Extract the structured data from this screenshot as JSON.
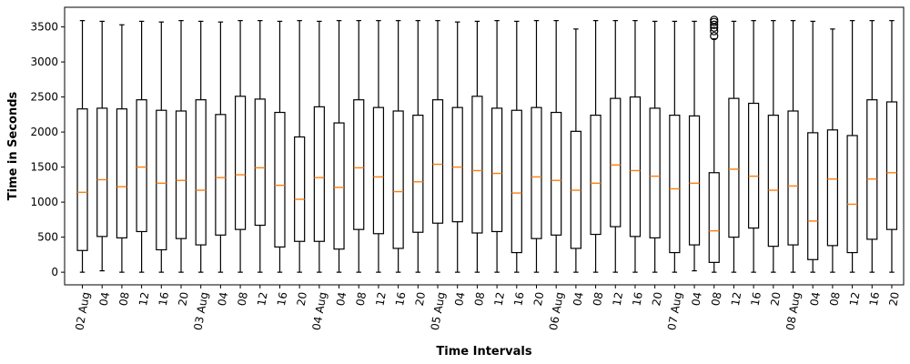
{
  "chart_data": {
    "type": "boxplot",
    "xlabel": "Time Intervals",
    "ylabel": "Time in Seconds",
    "ylim": [
      -180,
      3780
    ],
    "yticks": [
      0,
      500,
      1000,
      1500,
      2000,
      2500,
      3000,
      3500
    ],
    "grid": false,
    "categories": [
      "02 Aug",
      "04",
      "08",
      "12",
      "16",
      "20",
      "03 Aug",
      "04",
      "08",
      "12",
      "16",
      "20",
      "04 Aug",
      "04",
      "08",
      "12",
      "16",
      "20",
      "05 Aug",
      "04",
      "08",
      "12",
      "16",
      "20",
      "06 Aug",
      "04",
      "08",
      "12",
      "16",
      "20",
      "07 Aug",
      "04",
      "08",
      "12",
      "16",
      "20",
      "08 Aug",
      "04",
      "08",
      "12",
      "16",
      "20"
    ],
    "boxes": [
      {
        "min": 0,
        "q1": 310,
        "median": 1140,
        "q3": 2330,
        "max": 3590,
        "outliers": []
      },
      {
        "min": 20,
        "q1": 510,
        "median": 1320,
        "q3": 2340,
        "max": 3580,
        "outliers": []
      },
      {
        "min": 0,
        "q1": 490,
        "median": 1220,
        "q3": 2330,
        "max": 3530,
        "outliers": []
      },
      {
        "min": 0,
        "q1": 580,
        "median": 1500,
        "q3": 2460,
        "max": 3580,
        "outliers": []
      },
      {
        "min": 0,
        "q1": 320,
        "median": 1270,
        "q3": 2310,
        "max": 3570,
        "outliers": []
      },
      {
        "min": 0,
        "q1": 480,
        "median": 1310,
        "q3": 2300,
        "max": 3590,
        "outliers": []
      },
      {
        "min": 0,
        "q1": 390,
        "median": 1170,
        "q3": 2460,
        "max": 3580,
        "outliers": []
      },
      {
        "min": 0,
        "q1": 530,
        "median": 1350,
        "q3": 2250,
        "max": 3570,
        "outliers": []
      },
      {
        "min": 0,
        "q1": 610,
        "median": 1390,
        "q3": 2510,
        "max": 3590,
        "outliers": []
      },
      {
        "min": 0,
        "q1": 670,
        "median": 1490,
        "q3": 2470,
        "max": 3590,
        "outliers": []
      },
      {
        "min": 0,
        "q1": 360,
        "median": 1240,
        "q3": 2280,
        "max": 3580,
        "outliers": []
      },
      {
        "min": 0,
        "q1": 440,
        "median": 1040,
        "q3": 1930,
        "max": 3590,
        "outliers": []
      },
      {
        "min": 0,
        "q1": 440,
        "median": 1350,
        "q3": 2360,
        "max": 3580,
        "outliers": []
      },
      {
        "min": 0,
        "q1": 330,
        "median": 1210,
        "q3": 2130,
        "max": 3590,
        "outliers": []
      },
      {
        "min": 0,
        "q1": 610,
        "median": 1490,
        "q3": 2460,
        "max": 3590,
        "outliers": []
      },
      {
        "min": 0,
        "q1": 550,
        "median": 1360,
        "q3": 2350,
        "max": 3590,
        "outliers": []
      },
      {
        "min": 0,
        "q1": 340,
        "median": 1150,
        "q3": 2300,
        "max": 3590,
        "outliers": []
      },
      {
        "min": 0,
        "q1": 570,
        "median": 1290,
        "q3": 2240,
        "max": 3590,
        "outliers": []
      },
      {
        "min": 0,
        "q1": 700,
        "median": 1540,
        "q3": 2460,
        "max": 3590,
        "outliers": []
      },
      {
        "min": 0,
        "q1": 720,
        "median": 1500,
        "q3": 2350,
        "max": 3570,
        "outliers": []
      },
      {
        "min": 0,
        "q1": 560,
        "median": 1450,
        "q3": 2510,
        "max": 3580,
        "outliers": []
      },
      {
        "min": 0,
        "q1": 580,
        "median": 1410,
        "q3": 2340,
        "max": 3590,
        "outliers": []
      },
      {
        "min": 0,
        "q1": 280,
        "median": 1130,
        "q3": 2310,
        "max": 3580,
        "outliers": []
      },
      {
        "min": 0,
        "q1": 480,
        "median": 1360,
        "q3": 2350,
        "max": 3590,
        "outliers": []
      },
      {
        "min": 0,
        "q1": 530,
        "median": 1310,
        "q3": 2280,
        "max": 3590,
        "outliers": []
      },
      {
        "min": 0,
        "q1": 340,
        "median": 1170,
        "q3": 2010,
        "max": 3470,
        "outliers": []
      },
      {
        "min": 0,
        "q1": 540,
        "median": 1270,
        "q3": 2240,
        "max": 3590,
        "outliers": []
      },
      {
        "min": 0,
        "q1": 650,
        "median": 1530,
        "q3": 2480,
        "max": 3590,
        "outliers": []
      },
      {
        "min": 0,
        "q1": 510,
        "median": 1450,
        "q3": 2500,
        "max": 3590,
        "outliers": []
      },
      {
        "min": 0,
        "q1": 490,
        "median": 1370,
        "q3": 2340,
        "max": 3580,
        "outliers": []
      },
      {
        "min": 0,
        "q1": 280,
        "median": 1190,
        "q3": 2240,
        "max": 3580,
        "outliers": []
      },
      {
        "min": 20,
        "q1": 390,
        "median": 1270,
        "q3": 2230,
        "max": 3580,
        "outliers": []
      },
      {
        "min": 0,
        "q1": 140,
        "median": 590,
        "q3": 1420,
        "max": 3330,
        "outliers": [
          3370,
          3440,
          3490,
          3530,
          3570,
          3600
        ]
      },
      {
        "min": 0,
        "q1": 500,
        "median": 1470,
        "q3": 2480,
        "max": 3580,
        "outliers": []
      },
      {
        "min": 0,
        "q1": 630,
        "median": 1370,
        "q3": 2410,
        "max": 3590,
        "outliers": []
      },
      {
        "min": 0,
        "q1": 370,
        "median": 1170,
        "q3": 2240,
        "max": 3590,
        "outliers": []
      },
      {
        "min": 0,
        "q1": 390,
        "median": 1230,
        "q3": 2300,
        "max": 3590,
        "outliers": []
      },
      {
        "min": 0,
        "q1": 180,
        "median": 730,
        "q3": 1990,
        "max": 3580,
        "outliers": []
      },
      {
        "min": 0,
        "q1": 380,
        "median": 1330,
        "q3": 2030,
        "max": 3470,
        "outliers": []
      },
      {
        "min": 0,
        "q1": 280,
        "median": 970,
        "q3": 1950,
        "max": 3590,
        "outliers": []
      },
      {
        "min": 0,
        "q1": 470,
        "median": 1330,
        "q3": 2460,
        "max": 3590,
        "outliers": []
      },
      {
        "min": 0,
        "q1": 610,
        "median": 1420,
        "q3": 2430,
        "max": 3590,
        "outliers": []
      }
    ],
    "colors": {
      "box": "#000000",
      "median": "#ff7f0e",
      "outlier": "#000000"
    }
  }
}
